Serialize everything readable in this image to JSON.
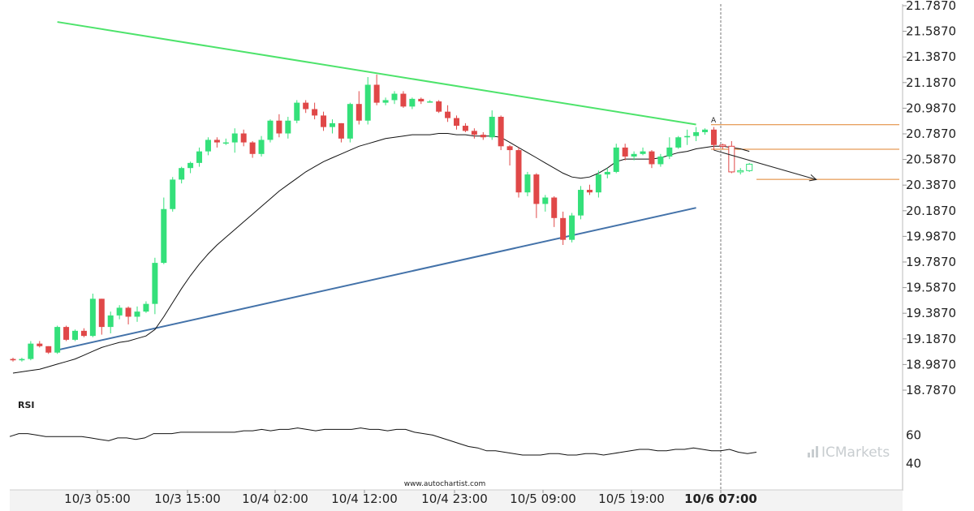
{
  "chart_data": {
    "type": "candlestick",
    "y_range": [
      18.787,
      21.787
    ],
    "price_ticks": [
      "21.7870",
      "21.5870",
      "21.3870",
      "21.1870",
      "20.9870",
      "20.7870",
      "20.5870",
      "20.3870",
      "20.1870",
      "19.9870",
      "19.7870",
      "19.5870",
      "19.3870",
      "19.1870",
      "18.9870",
      "18.7870"
    ],
    "time_ticks": [
      "10/3 05:00",
      "10/3 15:00",
      "10/4 02:00",
      "10/4 12:00",
      "10/4 23:00",
      "10/5 09:00",
      "10/5 19:00",
      "10/6 07:00"
    ],
    "highlighted_time": "10/6 07:00",
    "candles": [
      [
        19.03,
        19.04,
        19.01,
        19.02
      ],
      [
        19.02,
        19.04,
        19.01,
        19.03
      ],
      [
        19.03,
        19.17,
        19.02,
        19.15
      ],
      [
        19.15,
        19.17,
        19.12,
        19.13
      ],
      [
        19.13,
        19.13,
        19.07,
        19.08
      ],
      [
        19.08,
        19.29,
        19.07,
        19.28
      ],
      [
        19.28,
        19.29,
        19.17,
        19.18
      ],
      [
        19.18,
        19.26,
        19.17,
        19.25
      ],
      [
        19.25,
        19.27,
        19.2,
        19.21
      ],
      [
        19.21,
        19.54,
        19.2,
        19.5
      ],
      [
        19.5,
        19.5,
        19.22,
        19.28
      ],
      [
        19.28,
        19.4,
        19.23,
        19.37
      ],
      [
        19.37,
        19.45,
        19.34,
        19.43
      ],
      [
        19.43,
        19.44,
        19.3,
        19.36
      ],
      [
        19.36,
        19.44,
        19.32,
        19.4
      ],
      [
        19.4,
        19.48,
        19.39,
        19.46
      ],
      [
        19.46,
        19.82,
        19.38,
        19.78
      ],
      [
        19.78,
        20.29,
        19.77,
        20.2
      ],
      [
        20.2,
        20.45,
        20.18,
        20.43
      ],
      [
        20.43,
        20.53,
        20.4,
        20.52
      ],
      [
        20.52,
        20.57,
        20.48,
        20.56
      ],
      [
        20.56,
        20.68,
        20.53,
        20.65
      ],
      [
        20.65,
        20.76,
        20.62,
        20.74
      ],
      [
        20.74,
        20.76,
        20.68,
        20.72
      ],
      [
        20.72,
        20.75,
        20.7,
        20.72
      ],
      [
        20.72,
        20.83,
        20.64,
        20.79
      ],
      [
        20.79,
        20.82,
        20.69,
        20.72
      ],
      [
        20.72,
        20.73,
        20.6,
        20.63
      ],
      [
        20.63,
        20.77,
        20.61,
        20.74
      ],
      [
        20.74,
        20.9,
        20.72,
        20.89
      ],
      [
        20.89,
        20.94,
        20.76,
        20.79
      ],
      [
        20.79,
        20.92,
        20.75,
        20.89
      ],
      [
        20.89,
        21.05,
        20.87,
        21.03
      ],
      [
        21.03,
        21.05,
        20.95,
        20.98
      ],
      [
        20.98,
        21.03,
        20.9,
        20.93
      ],
      [
        20.93,
        20.96,
        20.81,
        20.84
      ],
      [
        20.84,
        20.9,
        20.79,
        20.87
      ],
      [
        20.87,
        20.87,
        20.72,
        20.75
      ],
      [
        20.75,
        21.03,
        20.72,
        21.02
      ],
      [
        21.02,
        21.12,
        20.86,
        20.89
      ],
      [
        20.89,
        21.23,
        20.86,
        21.17
      ],
      [
        21.17,
        21.25,
        21.01,
        21.03
      ],
      [
        21.03,
        21.07,
        21.01,
        21.05
      ],
      [
        21.05,
        21.12,
        21.02,
        21.1
      ],
      [
        21.1,
        21.12,
        20.99,
        21.0
      ],
      [
        21.0,
        21.07,
        20.98,
        21.06
      ],
      [
        21.06,
        21.07,
        21.02,
        21.04
      ],
      [
        21.04,
        21.05,
        21.03,
        21.04
      ],
      [
        21.04,
        21.05,
        20.95,
        20.96
      ],
      [
        20.96,
        21.01,
        20.88,
        20.91
      ],
      [
        20.91,
        20.93,
        20.82,
        20.85
      ],
      [
        20.85,
        20.87,
        20.8,
        20.81
      ],
      [
        20.81,
        20.83,
        20.75,
        20.78
      ],
      [
        20.78,
        20.8,
        20.74,
        20.76
      ],
      [
        20.76,
        20.97,
        20.74,
        20.92
      ],
      [
        20.92,
        20.93,
        20.66,
        20.69
      ],
      [
        20.69,
        20.7,
        20.54,
        20.66
      ],
      [
        20.66,
        20.68,
        20.29,
        20.33
      ],
      [
        20.33,
        20.49,
        20.3,
        20.47
      ],
      [
        20.47,
        20.48,
        20.13,
        20.24
      ],
      [
        20.24,
        20.31,
        20.18,
        20.29
      ],
      [
        20.29,
        20.3,
        20.06,
        20.13
      ],
      [
        20.13,
        20.18,
        19.92,
        19.96
      ],
      [
        19.96,
        20.17,
        19.94,
        20.15
      ],
      [
        20.15,
        20.38,
        20.12,
        20.35
      ],
      [
        20.35,
        20.39,
        20.31,
        20.33
      ],
      [
        20.33,
        20.5,
        20.29,
        20.47
      ],
      [
        20.47,
        20.52,
        20.44,
        20.49
      ],
      [
        20.49,
        20.71,
        20.48,
        20.68
      ],
      [
        20.68,
        20.71,
        20.58,
        20.61
      ],
      [
        20.61,
        20.65,
        20.58,
        20.63
      ],
      [
        20.63,
        20.68,
        20.62,
        20.65
      ],
      [
        20.65,
        20.66,
        20.52,
        20.55
      ],
      [
        20.55,
        20.63,
        20.53,
        20.61
      ],
      [
        20.61,
        20.76,
        20.59,
        20.68
      ],
      [
        20.68,
        20.77,
        20.67,
        20.76
      ],
      [
        20.76,
        20.82,
        20.7,
        20.77
      ],
      [
        20.77,
        20.84,
        20.73,
        20.8
      ],
      [
        20.8,
        20.83,
        20.78,
        20.82
      ],
      [
        20.82,
        20.84,
        20.66,
        20.7
      ],
      [
        20.7,
        20.71,
        20.67,
        20.69
      ],
      [
        20.69,
        20.73,
        20.48,
        20.49
      ],
      [
        20.49,
        20.52,
        20.47,
        20.5
      ],
      [
        20.5,
        20.56,
        20.49,
        20.55
      ]
    ],
    "moving_average": [
      18.92,
      18.93,
      18.94,
      18.95,
      18.97,
      18.99,
      19.01,
      19.03,
      19.06,
      19.09,
      19.12,
      19.14,
      19.16,
      19.17,
      19.19,
      19.21,
      19.26,
      19.36,
      19.47,
      19.58,
      19.68,
      19.77,
      19.85,
      19.92,
      19.98,
      20.04,
      20.1,
      20.16,
      20.22,
      20.28,
      20.34,
      20.39,
      20.44,
      20.49,
      20.53,
      20.57,
      20.6,
      20.63,
      20.66,
      20.69,
      20.71,
      20.73,
      20.75,
      20.76,
      20.77,
      20.78,
      20.78,
      20.78,
      20.79,
      20.79,
      20.78,
      20.78,
      20.77,
      20.77,
      20.77,
      20.76,
      20.72,
      20.68,
      20.64,
      20.6,
      20.56,
      20.52,
      20.48,
      20.45,
      20.44,
      20.45,
      20.48,
      20.52,
      20.57,
      20.59,
      20.59,
      20.59,
      20.59,
      20.6,
      20.62,
      20.64,
      20.65,
      20.67,
      20.68,
      20.69,
      20.69,
      20.68,
      20.67,
      20.65
    ],
    "trendline_resistance": {
      "start": [
        5,
        21.66
      ],
      "end": [
        77,
        20.86
      ]
    },
    "trendline_support": {
      "start": [
        5,
        19.1
      ],
      "end": [
        77,
        20.21
      ]
    },
    "projection_arrow": {
      "start": [
        79,
        20.66
      ],
      "end": [
        90,
        20.43
      ]
    },
    "target_levels": [
      20.858,
      20.667,
      20.432
    ],
    "pattern_label": "A",
    "rsi": {
      "label": "RSI",
      "ticks": [
        "60",
        "40"
      ],
      "values": [
        59,
        61,
        61,
        60,
        59,
        59,
        59,
        59,
        59,
        58,
        57,
        56,
        58,
        58,
        57,
        58,
        61,
        61,
        61,
        62,
        62,
        62,
        62,
        62,
        62,
        62,
        63,
        63,
        64,
        63,
        64,
        64,
        65,
        64,
        63,
        64,
        64,
        64,
        64,
        65,
        64,
        64,
        63,
        64,
        64,
        62,
        61,
        60,
        58,
        56,
        54,
        52,
        51,
        49,
        49,
        48,
        47,
        46,
        46,
        46,
        47,
        47,
        46,
        46,
        47,
        47,
        46,
        47,
        48,
        49,
        50,
        50,
        49,
        49,
        50,
        50,
        51,
        50,
        49,
        49,
        50,
        48,
        47,
        48
      ]
    }
  },
  "watermark": "www.autochartist.com",
  "brand": {
    "logo_text": "ICMarkets",
    "logo_icon": "bars-icon"
  },
  "colors": {
    "bull": "#34e07a",
    "bear": "#e04848",
    "resistance": "#4de36b",
    "support": "#4372a9",
    "target": "#e0822c",
    "ma": "#111111"
  }
}
